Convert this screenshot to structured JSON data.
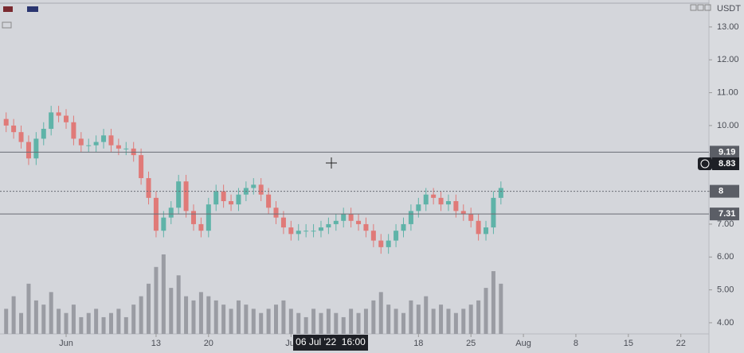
{
  "chart_data": {
    "type": "candlestick",
    "axis_unit": "USDT",
    "x": [
      -8,
      -7,
      -6,
      -5,
      -4,
      -3,
      -2,
      -1,
      0,
      1,
      2,
      3,
      4,
      5,
      6,
      7,
      8,
      9,
      10,
      11,
      12,
      13,
      14,
      15,
      16,
      17,
      18,
      19,
      20,
      21,
      22,
      23,
      24,
      25,
      26,
      27,
      28,
      29,
      30,
      31,
      32,
      33,
      34,
      35,
      36,
      37,
      38,
      39,
      40,
      41,
      42,
      43,
      44,
      45,
      46,
      47,
      48,
      49,
      50,
      51,
      52,
      53,
      54,
      55,
      56,
      57,
      58
    ],
    "open": [
      10.2,
      10.0,
      9.8,
      9.5,
      9.0,
      9.6,
      9.9,
      10.4,
      10.3,
      10.1,
      9.6,
      9.4,
      9.4,
      9.5,
      9.7,
      9.4,
      9.3,
      9.3,
      9.1,
      8.4,
      7.8,
      6.8,
      7.2,
      7.5,
      8.3,
      7.4,
      7.0,
      6.8,
      7.6,
      8.0,
      7.7,
      7.6,
      7.9,
      8.1,
      8.2,
      7.9,
      7.5,
      7.2,
      6.9,
      6.7,
      6.8,
      6.8,
      6.8,
      6.9,
      7.0,
      7.1,
      7.3,
      7.1,
      7.0,
      6.8,
      6.5,
      6.3,
      6.5,
      6.8,
      7.0,
      7.4,
      7.6,
      7.9,
      7.8,
      7.6,
      7.7,
      7.4,
      7.3,
      7.1,
      6.7,
      6.9,
      7.8
    ],
    "high": [
      10.4,
      10.2,
      10.0,
      9.7,
      9.8,
      10.1,
      10.6,
      10.6,
      10.5,
      10.3,
      9.8,
      9.6,
      9.7,
      9.9,
      9.9,
      9.6,
      9.5,
      9.5,
      9.3,
      8.6,
      8.0,
      7.4,
      7.7,
      8.5,
      8.5,
      7.6,
      7.2,
      7.8,
      8.2,
      8.2,
      7.9,
      8.1,
      8.3,
      8.4,
      8.4,
      8.1,
      7.7,
      7.4,
      7.1,
      7.0,
      7.0,
      7.0,
      7.1,
      7.2,
      7.3,
      7.5,
      7.5,
      7.3,
      7.2,
      7.0,
      6.7,
      6.7,
      7.0,
      7.2,
      7.6,
      7.8,
      8.1,
      8.1,
      8.0,
      7.9,
      7.9,
      7.6,
      7.5,
      7.3,
      7.1,
      8.0,
      8.3
    ],
    "low": [
      9.8,
      9.6,
      9.3,
      8.8,
      8.8,
      9.4,
      9.7,
      10.1,
      9.9,
      9.4,
      9.2,
      9.2,
      9.2,
      9.3,
      9.2,
      9.1,
      9.1,
      8.9,
      8.2,
      7.6,
      6.6,
      6.6,
      7.0,
      7.3,
      7.2,
      6.8,
      6.6,
      6.6,
      7.4,
      7.5,
      7.4,
      7.4,
      7.7,
      7.9,
      7.7,
      7.3,
      7.0,
      6.7,
      6.5,
      6.5,
      6.6,
      6.6,
      6.6,
      6.7,
      6.8,
      6.9,
      6.9,
      6.8,
      6.6,
      6.3,
      6.1,
      6.1,
      6.3,
      6.6,
      6.8,
      7.2,
      7.4,
      7.6,
      7.4,
      7.4,
      7.2,
      7.1,
      6.9,
      6.5,
      6.5,
      6.7,
      7.6
    ],
    "close": [
      10.0,
      9.8,
      9.5,
      9.0,
      9.6,
      9.9,
      10.4,
      10.3,
      10.1,
      9.6,
      9.4,
      9.4,
      9.5,
      9.7,
      9.4,
      9.3,
      9.3,
      9.1,
      8.4,
      7.8,
      6.8,
      7.2,
      7.5,
      8.3,
      7.4,
      7.0,
      6.8,
      7.6,
      8.0,
      7.7,
      7.6,
      7.9,
      8.1,
      8.2,
      7.9,
      7.5,
      7.2,
      6.9,
      6.7,
      6.8,
      6.8,
      6.8,
      6.9,
      7.0,
      7.1,
      7.3,
      7.1,
      7.0,
      6.8,
      6.5,
      6.3,
      6.5,
      6.8,
      7.0,
      7.4,
      7.6,
      7.9,
      7.8,
      7.6,
      7.7,
      7.4,
      7.3,
      7.1,
      6.7,
      6.9,
      7.8,
      8.1
    ],
    "volume": [
      30,
      45,
      25,
      60,
      40,
      35,
      50,
      30,
      25,
      35,
      20,
      25,
      30,
      20,
      25,
      30,
      20,
      35,
      45,
      60,
      80,
      95,
      55,
      70,
      45,
      40,
      50,
      45,
      40,
      35,
      30,
      40,
      35,
      30,
      25,
      30,
      35,
      40,
      30,
      25,
      20,
      30,
      25,
      30,
      25,
      20,
      30,
      25,
      30,
      40,
      50,
      35,
      30,
      25,
      40,
      35,
      45,
      30,
      35,
      30,
      25,
      30,
      35,
      40,
      55,
      75,
      60
    ],
    "up_color": "#5fb3a8",
    "down_color": "#e07a78",
    "volume_color": "#9a9ca3",
    "xlim": [
      -8.82,
      85.75
    ],
    "xticks": [
      {
        "value": 0,
        "label": "Jun"
      },
      {
        "value": 12,
        "label": "13"
      },
      {
        "value": 19,
        "label": "20"
      },
      {
        "value": 30,
        "label": "Jul"
      },
      {
        "value": 47,
        "label": "18"
      },
      {
        "value": 54,
        "label": "25"
      },
      {
        "value": 61,
        "label": "Aug"
      },
      {
        "value": 68,
        "label": "8"
      },
      {
        "value": 75,
        "label": "15"
      },
      {
        "value": 82,
        "label": "22"
      }
    ],
    "ylim": [
      3.66,
      13.82
    ],
    "yticks": [
      {
        "value": 4,
        "label": "4.00"
      },
      {
        "value": 5,
        "label": "5.00"
      },
      {
        "value": 6,
        "label": "6.00"
      },
      {
        "value": 7,
        "label": "7.00"
      },
      {
        "value": 8,
        "label": "8.00"
      },
      {
        "value": 9,
        "label": "9.00"
      },
      {
        "value": 10,
        "label": "10.00"
      },
      {
        "value": 11,
        "label": "11.00"
      },
      {
        "value": 12,
        "label": "12.00"
      },
      {
        "value": 13,
        "label": "13.00"
      }
    ],
    "levels": [
      {
        "value": 9.19,
        "style": "solid"
      },
      {
        "value": 8.0,
        "style": "dotted"
      },
      {
        "value": 7.31,
        "style": "solid"
      }
    ],
    "crosshair": {
      "price": 8.83,
      "time": "06 Jul '22  16:00"
    }
  }
}
